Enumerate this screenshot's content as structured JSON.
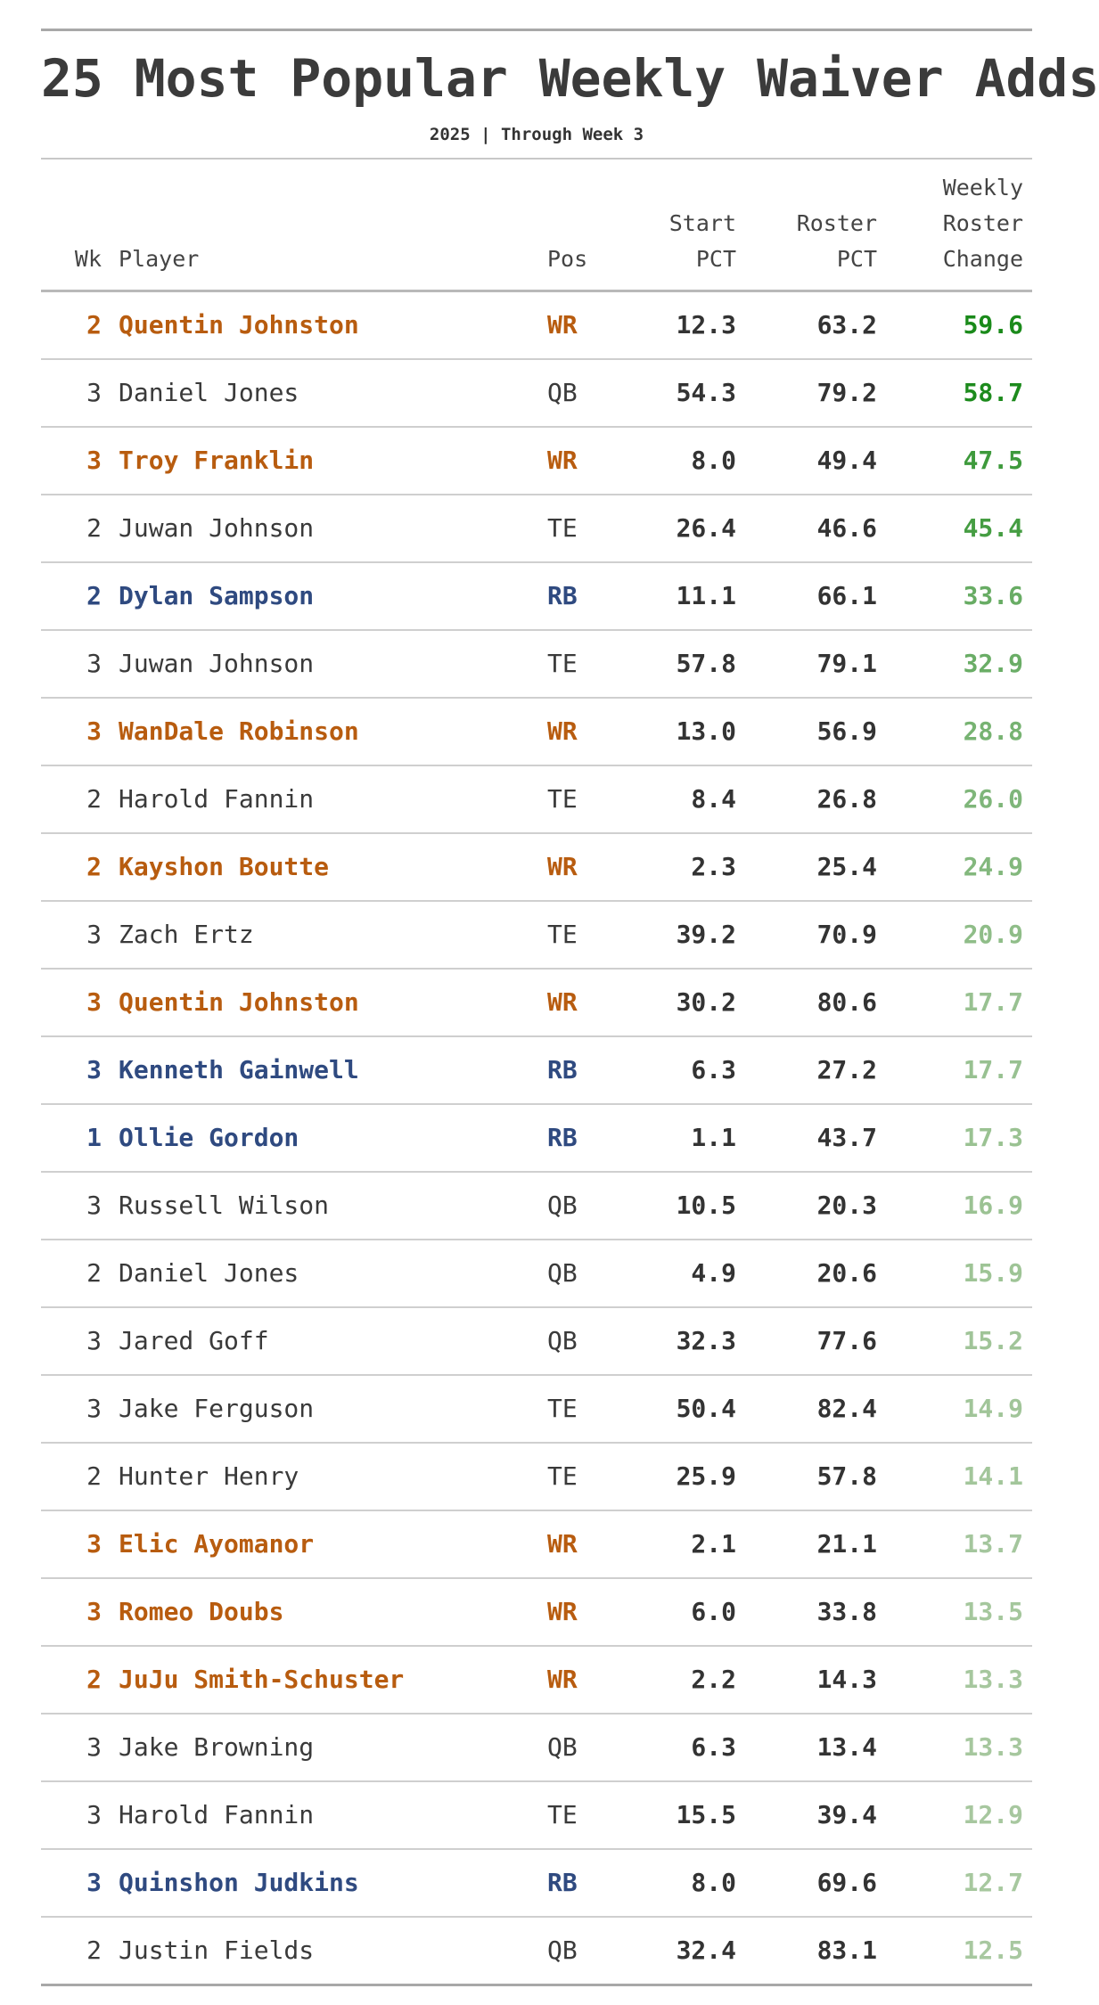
{
  "title": "25 Most Popular Weekly Waiver Adds",
  "subtitle": "2025 | Through Week 3",
  "columns": {
    "wk": "Wk",
    "player": "Player",
    "pos": "Pos",
    "start_line1": "Start",
    "start_line2": "PCT",
    "roster_line1": "Roster",
    "roster_line2": "PCT",
    "change_line1": "Weekly",
    "change_line2": "Roster",
    "change_line3": "Change"
  },
  "colors": {
    "WR": "#b85c0f",
    "RB": "#2f4a80",
    "QB": "#3a3a3a",
    "TE": "#3a3a3a",
    "change_max": "#1a8a1a",
    "change_min": "#a8c8a0",
    "rules": "#cfcfcf"
  },
  "highlighted_positions": [
    "WR",
    "RB"
  ],
  "chart_data": {
    "type": "table",
    "title": "25 Most Popular Weekly Waiver Adds",
    "subtitle": "2025 | Through Week 3",
    "headers": [
      "Wk",
      "Player",
      "Pos",
      "Start PCT",
      "Roster PCT",
      "Weekly Roster Change"
    ],
    "rows": [
      {
        "wk": "2",
        "player": "Quentin Johnston",
        "pos": "WR",
        "start": "12.3",
        "roster": "63.2",
        "change": "59.6"
      },
      {
        "wk": "3",
        "player": "Daniel Jones",
        "pos": "QB",
        "start": "54.3",
        "roster": "79.2",
        "change": "58.7"
      },
      {
        "wk": "3",
        "player": "Troy Franklin",
        "pos": "WR",
        "start": "8.0",
        "roster": "49.4",
        "change": "47.5"
      },
      {
        "wk": "2",
        "player": "Juwan Johnson",
        "pos": "TE",
        "start": "26.4",
        "roster": "46.6",
        "change": "45.4"
      },
      {
        "wk": "2",
        "player": "Dylan Sampson",
        "pos": "RB",
        "start": "11.1",
        "roster": "66.1",
        "change": "33.6"
      },
      {
        "wk": "3",
        "player": "Juwan Johnson",
        "pos": "TE",
        "start": "57.8",
        "roster": "79.1",
        "change": "32.9"
      },
      {
        "wk": "3",
        "player": "WanDale Robinson",
        "pos": "WR",
        "start": "13.0",
        "roster": "56.9",
        "change": "28.8"
      },
      {
        "wk": "2",
        "player": "Harold Fannin",
        "pos": "TE",
        "start": "8.4",
        "roster": "26.8",
        "change": "26.0"
      },
      {
        "wk": "2",
        "player": "Kayshon Boutte",
        "pos": "WR",
        "start": "2.3",
        "roster": "25.4",
        "change": "24.9"
      },
      {
        "wk": "3",
        "player": "Zach Ertz",
        "pos": "TE",
        "start": "39.2",
        "roster": "70.9",
        "change": "20.9"
      },
      {
        "wk": "3",
        "player": "Quentin Johnston",
        "pos": "WR",
        "start": "30.2",
        "roster": "80.6",
        "change": "17.7"
      },
      {
        "wk": "3",
        "player": "Kenneth Gainwell",
        "pos": "RB",
        "start": "6.3",
        "roster": "27.2",
        "change": "17.7"
      },
      {
        "wk": "1",
        "player": "Ollie Gordon",
        "pos": "RB",
        "start": "1.1",
        "roster": "43.7",
        "change": "17.3"
      },
      {
        "wk": "3",
        "player": "Russell Wilson",
        "pos": "QB",
        "start": "10.5",
        "roster": "20.3",
        "change": "16.9"
      },
      {
        "wk": "2",
        "player": "Daniel Jones",
        "pos": "QB",
        "start": "4.9",
        "roster": "20.6",
        "change": "15.9"
      },
      {
        "wk": "3",
        "player": "Jared Goff",
        "pos": "QB",
        "start": "32.3",
        "roster": "77.6",
        "change": "15.2"
      },
      {
        "wk": "3",
        "player": "Jake Ferguson",
        "pos": "TE",
        "start": "50.4",
        "roster": "82.4",
        "change": "14.9"
      },
      {
        "wk": "2",
        "player": "Hunter Henry",
        "pos": "TE",
        "start": "25.9",
        "roster": "57.8",
        "change": "14.1"
      },
      {
        "wk": "3",
        "player": "Elic Ayomanor",
        "pos": "WR",
        "start": "2.1",
        "roster": "21.1",
        "change": "13.7"
      },
      {
        "wk": "3",
        "player": "Romeo Doubs",
        "pos": "WR",
        "start": "6.0",
        "roster": "33.8",
        "change": "13.5"
      },
      {
        "wk": "2",
        "player": "JuJu Smith-Schuster",
        "pos": "WR",
        "start": "2.2",
        "roster": "14.3",
        "change": "13.3"
      },
      {
        "wk": "3",
        "player": "Jake Browning",
        "pos": "QB",
        "start": "6.3",
        "roster": "13.4",
        "change": "13.3"
      },
      {
        "wk": "3",
        "player": "Harold Fannin",
        "pos": "TE",
        "start": "15.5",
        "roster": "39.4",
        "change": "12.9"
      },
      {
        "wk": "3",
        "player": "Quinshon Judkins",
        "pos": "RB",
        "start": "8.0",
        "roster": "69.6",
        "change": "12.7"
      },
      {
        "wk": "2",
        "player": "Justin Fields",
        "pos": "QB",
        "start": "32.4",
        "roster": "83.1",
        "change": "12.5"
      }
    ]
  }
}
